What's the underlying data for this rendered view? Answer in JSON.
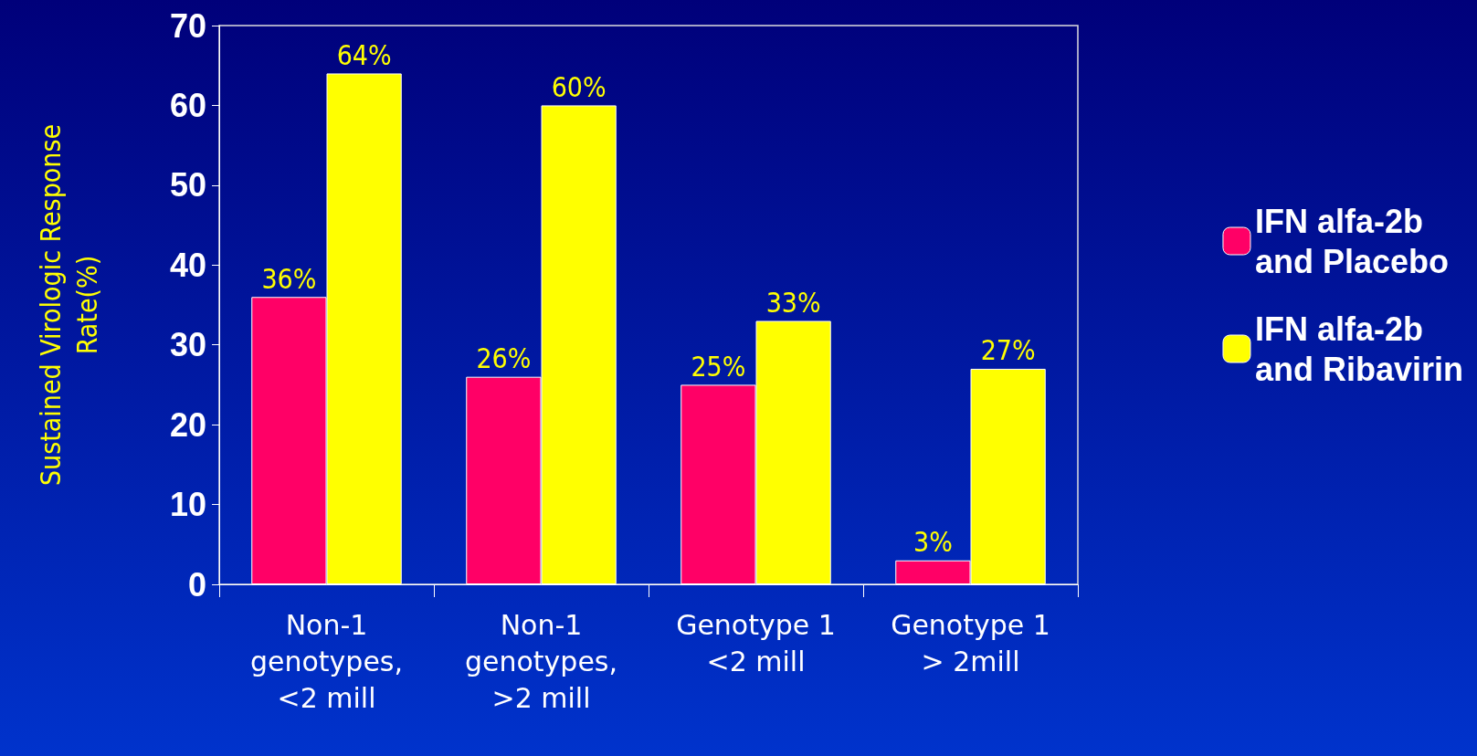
{
  "chart_data": {
    "type": "bar",
    "ylabel": "Sustained Virologic Response\nRate(%)",
    "categories": [
      "Non-1\ngenotypes,\n<2 mill",
      "Non-1\ngenotypes,\n>2 mill",
      "Genotype 1\n<2 mill",
      "Genotype 1\n> 2mill"
    ],
    "series": [
      {
        "name": "IFN alfa-2b\nand Placebo",
        "color": "#ff0066",
        "values": [
          36,
          26,
          25,
          3
        ],
        "value_labels": [
          "36%",
          "26%",
          "25%",
          "3%"
        ]
      },
      {
        "name": "IFN alfa-2b\nand Ribavirin",
        "color": "#ffff00",
        "values": [
          64,
          60,
          33,
          27
        ],
        "value_labels": [
          "64%",
          "60%",
          "33%",
          "27%"
        ]
      }
    ],
    "ylim": [
      0,
      70
    ],
    "yticks": [
      0,
      10,
      20,
      30,
      40,
      50,
      60,
      70
    ],
    "grid": false,
    "legend": "right"
  }
}
